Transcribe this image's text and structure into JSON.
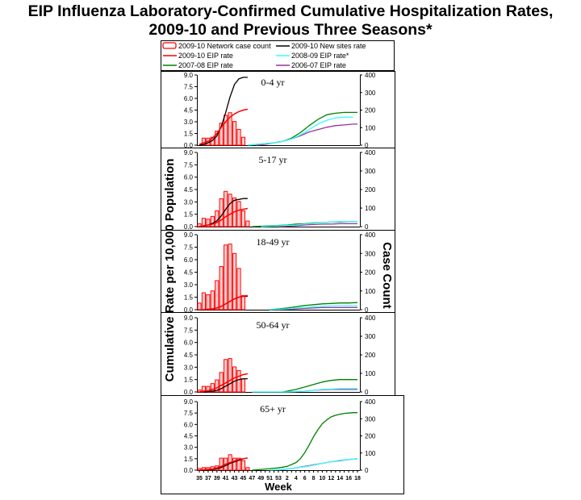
{
  "title_line1": "EIP Influenza Laboratory-Confirmed Cumulative Hospitalization Rates,",
  "title_line2": "2009-10 and Previous Three Seasons*",
  "legend": [
    {
      "label": "2009-10 Network case count",
      "color": "#ff0000",
      "kind": "bar"
    },
    {
      "label": "2009-10 New sites rate",
      "color": "#000000",
      "kind": "line"
    },
    {
      "label": "2009-10 EIP rate",
      "color": "#ff0000",
      "kind": "line"
    },
    {
      "label": "2008-09 EIP rate*",
      "color": "#33ffff",
      "kind": "line"
    },
    {
      "label": "2007-08 EIP rate",
      "color": "#008000",
      "kind": "line"
    },
    {
      "label": "2006-07 EIP rate",
      "color": "#993399",
      "kind": "line"
    }
  ],
  "y_left_title": "Cumulative Rate per 10,000 Population",
  "y_right_title_1": "Case",
  "y_right_title_2": "Count",
  "x_title": "Week",
  "chart_data": {
    "type": "bar+line",
    "x_ticks": [
      "35",
      "37",
      "39",
      "41",
      "43",
      "45",
      "47",
      "49",
      "51",
      "53",
      "2",
      "4",
      "6",
      "8",
      "10",
      "12",
      "14",
      "16",
      "18"
    ],
    "weeks": [
      35,
      36,
      37,
      38,
      39,
      40,
      41,
      42,
      43,
      44,
      45,
      46,
      47,
      48,
      49,
      50,
      51,
      52,
      53,
      1,
      2,
      3,
      4,
      5,
      6,
      7,
      8,
      9,
      10,
      11,
      12,
      13,
      14,
      15,
      16,
      17,
      18
    ],
    "y_left_ticks": [
      "0.0",
      "1.5",
      "3.0",
      "4.5",
      "6.0",
      "7.5",
      "9.0"
    ],
    "y_left_range": [
      0,
      9.0
    ],
    "y_right_ticks": [
      "0",
      "100",
      "200",
      "300",
      "400"
    ],
    "y_right_range": [
      0,
      400
    ],
    "panels": [
      {
        "label": "0-4 yr",
        "bar_weeks": [
          36,
          37,
          38,
          39,
          40,
          41,
          42,
          43,
          44,
          45,
          46
        ],
        "case_counts": [
          40,
          40,
          45,
          80,
          125,
          170,
          185,
          135,
          90,
          45,
          0
        ],
        "new_sites_rate": {
          "weeks": [
            35,
            36,
            37,
            38,
            39,
            40,
            41,
            42,
            43,
            44,
            45,
            46
          ],
          "values": [
            0.0,
            0.1,
            0.3,
            0.6,
            1.2,
            2.4,
            4.2,
            6.2,
            7.8,
            8.5,
            8.7,
            8.7
          ]
        },
        "eip_2009_10": {
          "weeks": [
            35,
            36,
            37,
            38,
            39,
            40,
            41,
            42,
            43,
            44,
            45,
            46
          ],
          "values": [
            0.1,
            0.3,
            0.5,
            0.9,
            1.5,
            2.3,
            3.0,
            3.6,
            4.0,
            4.3,
            4.5,
            4.6
          ]
        },
        "eip_2008_09": {
          "weeks": [
            46,
            48,
            50,
            52,
            1,
            3,
            5,
            7,
            9,
            11,
            13,
            15,
            17
          ],
          "values": [
            0.0,
            0.1,
            0.2,
            0.3,
            0.5,
            0.8,
            1.3,
            2.0,
            2.7,
            3.2,
            3.5,
            3.6,
            3.6
          ]
        },
        "eip_2007_08": {
          "weeks": [
            46,
            48,
            50,
            52,
            1,
            3,
            5,
            7,
            9,
            11,
            13,
            15,
            17,
            18
          ],
          "values": [
            0.0,
            0.1,
            0.2,
            0.3,
            0.5,
            0.9,
            1.6,
            2.5,
            3.3,
            3.9,
            4.1,
            4.2,
            4.2,
            4.2
          ]
        },
        "eip_2006_07": {
          "weeks": [
            48,
            50,
            52,
            1,
            3,
            5,
            7,
            9,
            11,
            13,
            15,
            17,
            18
          ],
          "values": [
            0.0,
            0.1,
            0.3,
            0.5,
            0.8,
            1.2,
            1.7,
            2.0,
            2.3,
            2.5,
            2.6,
            2.7,
            2.7
          ]
        }
      },
      {
        "label": "5-17 yr",
        "bar_weeks": [
          35,
          36,
          37,
          38,
          39,
          40,
          41,
          42,
          43,
          44,
          45,
          46
        ],
        "case_counts": [
          15,
          45,
          40,
          55,
          85,
          150,
          190,
          175,
          155,
          135,
          85,
          30
        ],
        "new_sites_rate": {
          "weeks": [
            35,
            36,
            37,
            38,
            39,
            40,
            41,
            42,
            43,
            44,
            45,
            46
          ],
          "values": [
            0.0,
            0.1,
            0.2,
            0.4,
            0.7,
            1.3,
            2.1,
            2.8,
            3.2,
            3.3,
            3.4,
            3.4
          ]
        },
        "eip_2009_10": {
          "weeks": [
            35,
            36,
            37,
            38,
            39,
            40,
            41,
            42,
            43,
            44,
            45,
            46
          ],
          "values": [
            0.0,
            0.1,
            0.2,
            0.3,
            0.5,
            0.8,
            1.2,
            1.5,
            1.8,
            2.0,
            2.1,
            2.2
          ]
        },
        "eip_2008_09": {
          "weeks": [
            49,
            51,
            53,
            2,
            4,
            6,
            8,
            10,
            12,
            14,
            16,
            18
          ],
          "values": [
            0.0,
            0.05,
            0.1,
            0.15,
            0.2,
            0.3,
            0.4,
            0.5,
            0.55,
            0.6,
            0.6,
            0.6
          ]
        },
        "eip_2007_08": {
          "weeks": [
            47,
            49,
            51,
            53,
            2,
            4,
            6,
            8,
            10,
            12,
            14,
            16,
            18
          ],
          "values": [
            0.0,
            0.05,
            0.1,
            0.15,
            0.2,
            0.3,
            0.35,
            0.45,
            0.5,
            0.55,
            0.55,
            0.6,
            0.6
          ]
        },
        "eip_2006_07": {
          "weeks": [
            53,
            2,
            4,
            6,
            8,
            10,
            12,
            14,
            16,
            18
          ],
          "values": [
            0.0,
            0.05,
            0.1,
            0.2,
            0.25,
            0.3,
            0.3,
            0.35,
            0.35,
            0.35
          ]
        }
      },
      {
        "label": "18-49 yr",
        "bar_weeks": [
          35,
          36,
          37,
          38,
          39,
          40,
          41,
          42,
          43,
          44,
          45,
          46
        ],
        "case_counts": [
          35,
          90,
          80,
          100,
          155,
          230,
          345,
          350,
          300,
          220,
          75,
          0
        ],
        "new_sites_rate": {
          "weeks": [
            36,
            37,
            38,
            39,
            40,
            41,
            42,
            43,
            44,
            45,
            46
          ],
          "values": [
            0.0,
            0.05,
            0.1,
            0.2,
            0.4,
            0.7,
            1.0,
            1.3,
            1.5,
            1.6,
            1.6
          ]
        },
        "eip_2009_10": {
          "weeks": [
            36,
            37,
            38,
            39,
            40,
            41,
            42,
            43,
            44,
            45,
            46
          ],
          "values": [
            0.0,
            0.05,
            0.1,
            0.2,
            0.4,
            0.7,
            1.0,
            1.3,
            1.5,
            1.6,
            1.7
          ]
        },
        "eip_2008_09": {
          "weeks": [
            51,
            53,
            2,
            4,
            6,
            8,
            10,
            12,
            14,
            16,
            18
          ],
          "values": [
            0.0,
            0.05,
            0.1,
            0.2,
            0.25,
            0.35,
            0.4,
            0.45,
            0.45,
            0.45,
            0.45
          ]
        },
        "eip_2007_08": {
          "weeks": [
            51,
            53,
            2,
            4,
            6,
            8,
            10,
            12,
            14,
            16,
            18
          ],
          "values": [
            0.0,
            0.1,
            0.2,
            0.35,
            0.5,
            0.6,
            0.7,
            0.75,
            0.8,
            0.8,
            0.85
          ]
        },
        "eip_2006_07": {
          "weeks": [
            53,
            2,
            4,
            6,
            8,
            10,
            12,
            14,
            16,
            18
          ],
          "values": [
            0.0,
            0.05,
            0.1,
            0.15,
            0.2,
            0.25,
            0.25,
            0.25,
            0.25,
            0.25
          ]
        }
      },
      {
        "label": "50-64 yr",
        "bar_weeks": [
          35,
          36,
          37,
          38,
          39,
          40,
          41,
          42,
          43,
          44,
          45,
          46
        ],
        "case_counts": [
          10,
          30,
          30,
          45,
          65,
          105,
          175,
          180,
          135,
          115,
          70,
          0
        ],
        "new_sites_rate": {
          "weeks": [
            36,
            37,
            38,
            39,
            40,
            41,
            42,
            43,
            44,
            45,
            46
          ],
          "values": [
            0.0,
            0.05,
            0.1,
            0.2,
            0.4,
            0.7,
            1.0,
            1.3,
            1.5,
            1.6,
            1.6
          ]
        },
        "eip_2009_10": {
          "weeks": [
            35,
            36,
            37,
            38,
            39,
            40,
            41,
            42,
            43,
            44,
            45,
            46
          ],
          "values": [
            0.0,
            0.1,
            0.15,
            0.3,
            0.5,
            0.8,
            1.1,
            1.4,
            1.7,
            1.9,
            2.1,
            2.2
          ]
        },
        "eip_2008_09": {
          "weeks": [
            47,
            49,
            51,
            53,
            2,
            4,
            6,
            8,
            10,
            12,
            14,
            16,
            18
          ],
          "values": [
            0.0,
            0.0,
            0.0,
            0.0,
            0.0,
            0.05,
            0.1,
            0.2,
            0.3,
            0.35,
            0.4,
            0.4,
            0.4
          ]
        },
        "eip_2007_08": {
          "weeks": [
            1,
            2,
            4,
            6,
            8,
            10,
            12,
            14,
            16,
            18
          ],
          "values": [
            0.0,
            0.1,
            0.3,
            0.6,
            0.9,
            1.2,
            1.4,
            1.5,
            1.5,
            1.5
          ]
        },
        "eip_2006_07": {
          "weeks": [
            2,
            4,
            6,
            8,
            10,
            12,
            14,
            16,
            18
          ],
          "values": [
            0.0,
            0.05,
            0.1,
            0.2,
            0.25,
            0.3,
            0.3,
            0.3,
            0.3
          ]
        }
      },
      {
        "label": "65+ yr",
        "bar_weeks": [
          35,
          36,
          37,
          38,
          39,
          40,
          41,
          42,
          43,
          44,
          45,
          46
        ],
        "case_counts": [
          10,
          15,
          15,
          20,
          25,
          70,
          70,
          90,
          70,
          70,
          55,
          15
        ],
        "new_sites_rate": {
          "weeks": [
            36,
            37,
            38,
            39,
            40,
            41,
            42,
            43,
            44,
            45
          ],
          "values": [
            0.0,
            0.05,
            0.1,
            0.2,
            0.35,
            0.6,
            0.9,
            1.1,
            1.3,
            1.45
          ]
        },
        "eip_2009_10": {
          "weeks": [
            35,
            36,
            37,
            38,
            39,
            40,
            41,
            42,
            43,
            44,
            45,
            46
          ],
          "values": [
            0.0,
            0.05,
            0.1,
            0.15,
            0.3,
            0.5,
            0.8,
            1.0,
            1.2,
            1.4,
            1.5,
            1.6
          ]
        },
        "eip_2008_09": {
          "weeks": [
            51,
            53,
            2,
            4,
            6,
            8,
            10,
            12,
            14,
            16,
            18
          ],
          "values": [
            0.0,
            0.05,
            0.15,
            0.3,
            0.45,
            0.65,
            0.9,
            1.1,
            1.3,
            1.4,
            1.5
          ]
        },
        "eip_2007_08": {
          "weeks": [
            47,
            49,
            51,
            53,
            2,
            4,
            5,
            6,
            7,
            8,
            9,
            10,
            11,
            12,
            13,
            14,
            15,
            16,
            17,
            18
          ],
          "values": [
            0.0,
            0.1,
            0.2,
            0.3,
            0.5,
            1.0,
            1.5,
            2.3,
            3.3,
            4.4,
            5.3,
            6.1,
            6.6,
            7.0,
            7.2,
            7.35,
            7.45,
            7.5,
            7.55,
            7.55
          ]
        },
        "eip_2006_07": {
          "weeks": [
            53,
            2,
            4,
            6,
            8,
            10,
            12,
            14,
            16,
            18
          ],
          "values": [
            0.0,
            0.15,
            0.3,
            0.5,
            0.7,
            0.9,
            1.1,
            1.25,
            1.4,
            1.5
          ]
        }
      }
    ]
  }
}
